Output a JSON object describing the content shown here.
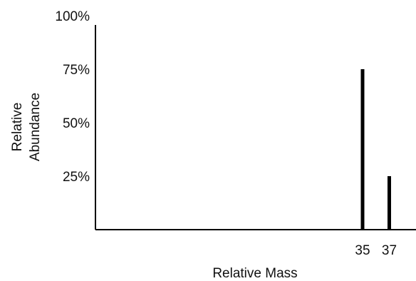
{
  "chart_data": {
    "type": "bar",
    "xlabel": "Relative Mass",
    "ylabel_lines": [
      "Relative",
      "Abundance"
    ],
    "x": [
      35,
      37
    ],
    "values": [
      75,
      25
    ],
    "x_ticks": [
      "35",
      "37"
    ],
    "y_ticks": [
      {
        "value": 25,
        "label": "25%"
      },
      {
        "value": 50,
        "label": "50%"
      },
      {
        "value": 75,
        "label": "75%"
      },
      {
        "value": 100,
        "label": "100%"
      }
    ],
    "ylim": [
      0,
      100
    ],
    "xlim": [
      15,
      39
    ],
    "grid": false,
    "bar_color": "#000000",
    "axis_color": "#000000"
  }
}
